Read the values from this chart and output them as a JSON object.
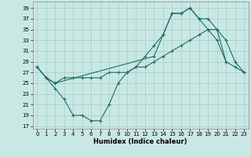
{
  "xlabel": "Humidex (Indice chaleur)",
  "bg_color": "#c8e8e4",
  "grid_color": "#a8ccc8",
  "line_color": "#1e6e68",
  "xlim": [
    -0.5,
    23.5
  ],
  "ylim": [
    16.5,
    40.2
  ],
  "yticks": [
    17,
    19,
    21,
    23,
    25,
    27,
    29,
    31,
    33,
    35,
    37,
    39
  ],
  "xticks": [
    0,
    1,
    2,
    3,
    4,
    5,
    6,
    7,
    8,
    9,
    10,
    11,
    12,
    13,
    14,
    15,
    16,
    17,
    18,
    19,
    20,
    21,
    22,
    23
  ],
  "line1_x": [
    0,
    1,
    2,
    3,
    4,
    5,
    6,
    7,
    8,
    9,
    10,
    11,
    12,
    13,
    14,
    15,
    16,
    17,
    18,
    19,
    20,
    21
  ],
  "line1_y": [
    28,
    26,
    24,
    22,
    19,
    19,
    18,
    18,
    21,
    25,
    27,
    28,
    30,
    32,
    34,
    38,
    38,
    39,
    37,
    35,
    33,
    29
  ],
  "line2_x": [
    0,
    1,
    2,
    3,
    4,
    5,
    6,
    7,
    8,
    9,
    10,
    11,
    12,
    13,
    14,
    15,
    16,
    17,
    18,
    19,
    20,
    21,
    22,
    23
  ],
  "line2_y": [
    28,
    26,
    25,
    26,
    26,
    26,
    26,
    26,
    27,
    27,
    27,
    28,
    28,
    29,
    30,
    31,
    32,
    33,
    34,
    35,
    35,
    29,
    28,
    27
  ],
  "line3_x": [
    0,
    1,
    2,
    13,
    14,
    15,
    16,
    17,
    18,
    19,
    20,
    21,
    22,
    23
  ],
  "line3_y": [
    28,
    26,
    25,
    30,
    34,
    38,
    38,
    39,
    37,
    37,
    35,
    33,
    29,
    27
  ]
}
